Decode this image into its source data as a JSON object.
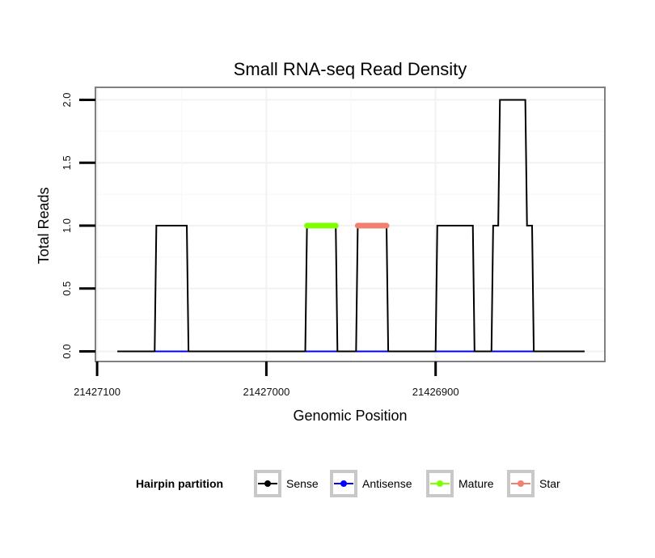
{
  "chart_data": {
    "type": "line",
    "title": "Small RNA-seq Read Density",
    "xlabel": "Genomic Position",
    "ylabel": "Total Reads",
    "xlim": [
      21427101,
      21426800
    ],
    "ylim": [
      -0.08,
      2.1
    ],
    "x_reversed": true,
    "x_ticks": [
      21427100,
      21427000,
      21426900
    ],
    "x_tick_labels": [
      "21427100",
      "21427000",
      "21426900"
    ],
    "y_ticks": [
      0.0,
      0.5,
      1.0,
      1.5,
      2.0
    ],
    "y_tick_labels": [
      "0.0",
      "0.5",
      "1.0",
      "1.5",
      "2.0"
    ],
    "grid": true,
    "legend": {
      "title": "Hairpin partition",
      "position": "bottom",
      "entries": [
        "Sense",
        "Antisense",
        "Mature",
        "Star"
      ]
    },
    "colors": {
      "Sense": "#000000",
      "Antisense": "#0000ff",
      "Mature": "#7fff00",
      "Star": "#f08070"
    },
    "series": [
      {
        "name": "Antisense",
        "x": [
          21427088,
          21426812
        ],
        "y": [
          0,
          0
        ]
      },
      {
        "name": "Sense",
        "x": [
          21427088,
          21427066,
          21427065,
          21427047,
          21427046,
          21426977,
          21426976,
          21426959,
          21426958,
          21426947,
          21426946,
          21426929,
          21426928,
          21426900,
          21426899,
          21426878,
          21426877,
          21426867,
          21426866,
          21426863,
          21426862,
          21426847,
          21426846,
          21426843,
          21426842,
          21426812
        ],
        "y": [
          0,
          0,
          1,
          1,
          0,
          0,
          1,
          1,
          0,
          0,
          1,
          1,
          0,
          0,
          1,
          1,
          0,
          0,
          1,
          1,
          2,
          2,
          1,
          1,
          0,
          0
        ]
      },
      {
        "name": "Mature",
        "x": [
          21426976,
          21426959
        ],
        "y": [
          1,
          1
        ]
      },
      {
        "name": "Star",
        "x": [
          21426946,
          21426929
        ],
        "y": [
          1,
          1
        ]
      }
    ]
  }
}
